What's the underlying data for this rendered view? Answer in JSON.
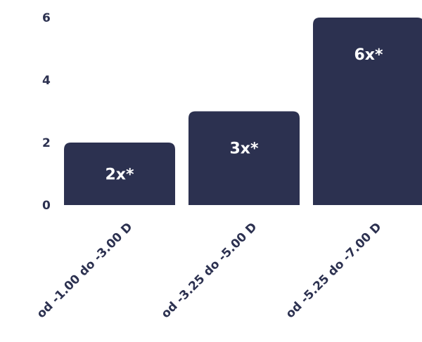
{
  "chart_data": {
    "type": "bar",
    "categories": [
      "od -1.00 do -3.00 D",
      "od -3.25 do -5.00 D",
      "od -5.25 do -7.00 D"
    ],
    "values": [
      2,
      3,
      6
    ],
    "data_labels": [
      "2x*",
      "3x*",
      "6x*"
    ],
    "title": "",
    "xlabel": "",
    "ylabel": "",
    "ylim": [
      0,
      6
    ],
    "yticks": [
      0,
      2,
      4,
      6
    ],
    "grid": false,
    "legend": "none",
    "colors": {
      "bar": "#2c3150",
      "text": "#2c3150",
      "data_label": "#ffffff"
    }
  }
}
